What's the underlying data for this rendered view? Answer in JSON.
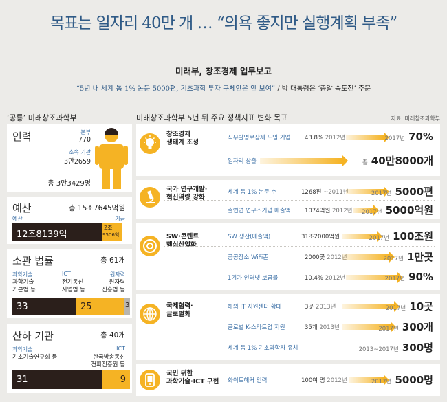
{
  "title": "목표는 일자리 40만 개 … “의욕 좋지만 실행계획 부족”",
  "subtitle": "미래부, 창조경제 업무보고",
  "quote_part1": "“5년 내 세계 톱 1% 논문 5000편, 기초과학 투자 구체안은 안 보여”",
  "quote_sep": " / ",
  "quote_part2": "박 대통령은 ‘총알 속도전’ 주문",
  "left_header": "‘공룡’ 미래창조과학부",
  "right_header": "미래창조과학부 5년 뒤 주요 정책지표 변화 목표",
  "source": "자료: 미래창조과학부",
  "manpower": {
    "title": "인력",
    "hq_label": "본부",
    "hq_value": "770",
    "affil_label": "소속 기관",
    "affil_value": "3만2659",
    "total": "총 3만3429명"
  },
  "budget": {
    "title": "예산",
    "total": "총 15조7645억원",
    "left_label": "예산",
    "right_label": "기금",
    "left_value": "12조8139억",
    "right_value_1": "2조",
    "right_value_2": "9506억",
    "budget_share": 0.813
  },
  "laws": {
    "title": "소관 법률",
    "total": "총 61개",
    "groups": [
      {
        "blue": "과학기술",
        "l1": "과학기술",
        "l2": "기본법 등",
        "value": "33"
      },
      {
        "blue": "ICT",
        "l1": "전기통신",
        "l2": "사업법 등",
        "value": "25"
      },
      {
        "blue": "원자력",
        "l1": "원자력",
        "l2": "진흥법 등",
        "value": "3"
      }
    ]
  },
  "agencies": {
    "title": "산하 기관",
    "total": "총 40개",
    "groups": [
      {
        "blue": "과학기술",
        "l1": "기초기술연구회 등",
        "l2": "",
        "value": "31"
      },
      {
        "blue": "ICT",
        "l1": "한국방송통신",
        "l2": "전파진흥원 등",
        "value": "9"
      }
    ]
  },
  "categories": [
    {
      "name_lines": [
        "창조경제",
        "생태계 조성"
      ],
      "icon": "lightbulb-icon",
      "rows": [
        {
          "indicator": "직무발명보상제 도입 기업",
          "current": "43.8%",
          "current_year": "2012년",
          "target_year": "2017년",
          "target": "70%"
        },
        {
          "indicator": "일자리 창출",
          "current": "",
          "current_year": "",
          "target_year": "총",
          "target": "40만8000개"
        }
      ]
    },
    {
      "name_lines": [
        "국가 연구개발·",
        "혁신역량 강화"
      ],
      "icon": "microscope-icon",
      "rows": [
        {
          "indicator": "세계 톱 1% 논문 수",
          "current": "1268편",
          "current_year": "~2011년",
          "target_year": "2017년",
          "target": "5000편"
        },
        {
          "indicator": "출연연 연구소기업 매출액",
          "current": "1074억원",
          "current_year": "2012년",
          "target_year": "2017년",
          "target": "5000억원"
        }
      ]
    },
    {
      "name_lines": [
        "SW·콘텐트",
        "핵심산업화"
      ],
      "icon": "disc-icon",
      "rows": [
        {
          "indicator": "SW 생산(매출액)",
          "current": "31조2000억원",
          "current_year": "",
          "target_year": "2017년",
          "target": "100조원"
        },
        {
          "indicator": "공공장소 WiFi존",
          "current": "2000곳",
          "current_year": "2012년",
          "target_year": "2017년",
          "target": "1만곳"
        },
        {
          "indicator": "1기가 인터넷 보급률",
          "current": "10.4%",
          "current_year": "2012년",
          "target_year": "2017년",
          "target": "90%"
        }
      ]
    },
    {
      "name_lines": [
        "국제협력·",
        "글로벌화"
      ],
      "icon": "globe-icon",
      "rows": [
        {
          "indicator": "해외 IT 지원센터 확대",
          "current": "3곳",
          "current_year": "2013년",
          "target_year": "2017년",
          "target": "10곳"
        },
        {
          "indicator": "글로벌 K-스타트업 지원",
          "current": "35개",
          "current_year": "2013년",
          "target_year": "2017년",
          "target": "300개"
        },
        {
          "indicator": "세계 톱 1% 기초과학자 유치",
          "current": "",
          "current_year": "",
          "target_year": "2013~2017년",
          "target": "300명"
        }
      ]
    },
    {
      "name_lines": [
        "국민 위한",
        "과학기술·ICT 구현"
      ],
      "icon": "tablet-icon",
      "rows": [
        {
          "indicator": "화이트해커 인력",
          "current": "100여 명",
          "current_year": "2012년",
          "target_year": "2017년",
          "target": "5000명"
        }
      ]
    }
  ],
  "colors": {
    "accent": "#f5b324",
    "dark": "#2b1f1b",
    "blue": "#3b6fa6",
    "title_blue": "#2f5a86",
    "background": "#ecebe8"
  }
}
